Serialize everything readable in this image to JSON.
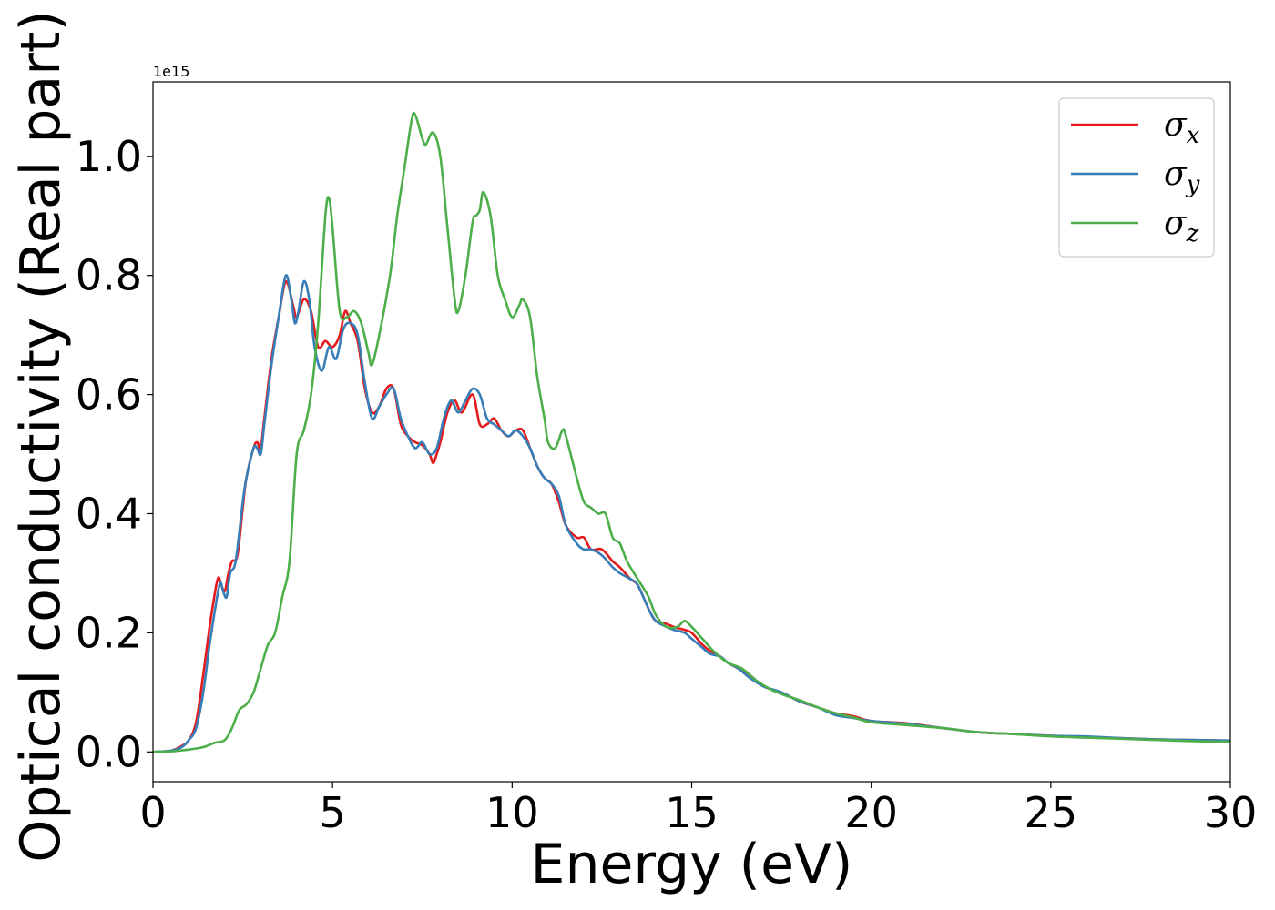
{
  "chart_data": {
    "type": "line",
    "title": "",
    "xlabel": "Energy (eV)",
    "ylabel": "Optical conductivity (Real part)",
    "y_offset_label": "1e15",
    "xlim": [
      0,
      30
    ],
    "ylim": [
      -0.05,
      1.125
    ],
    "xticks": [
      0,
      5,
      10,
      15,
      20,
      25,
      30
    ],
    "xtick_labels": [
      "0",
      "5",
      "10",
      "15",
      "20",
      "25",
      "30"
    ],
    "yticks": [
      0.0,
      0.2,
      0.4,
      0.6,
      0.8,
      1.0
    ],
    "ytick_labels": [
      "0.0",
      "0.2",
      "0.4",
      "0.6",
      "0.8",
      "1.0"
    ],
    "grid": false,
    "legend_position": "top-right",
    "series": [
      {
        "name": "σx",
        "legend_symbol": "σ",
        "legend_subscript": "x",
        "color": "#e41a1c",
        "x": [
          0,
          0.5,
          0.8,
          1.0,
          1.2,
          1.4,
          1.6,
          1.8,
          1.9,
          2.0,
          2.1,
          2.2,
          2.35,
          2.5,
          2.6,
          2.8,
          2.9,
          3.0,
          3.1,
          3.3,
          3.5,
          3.7,
          3.9,
          4.0,
          4.2,
          4.4,
          4.6,
          4.8,
          5.0,
          5.2,
          5.35,
          5.5,
          5.7,
          5.9,
          6.1,
          6.3,
          6.5,
          6.7,
          6.9,
          7.1,
          7.3,
          7.5,
          7.7,
          7.8,
          7.9,
          8.0,
          8.2,
          8.4,
          8.6,
          8.9,
          9.1,
          9.3,
          9.5,
          9.7,
          9.9,
          10.1,
          10.3,
          10.5,
          10.7,
          10.9,
          11.1,
          11.3,
          11.5,
          11.8,
          12.0,
          12.2,
          12.5,
          12.8,
          13.0,
          13.3,
          13.5,
          13.8,
          14.0,
          14.3,
          14.5,
          14.8,
          15.0,
          15.3,
          15.5,
          15.8,
          16.0,
          16.3,
          16.6,
          17.0,
          17.5,
          18.0,
          18.5,
          19.0,
          19.5,
          20.0,
          21.0,
          22.0,
          23.0,
          24.0,
          25.0,
          26.0,
          27.0,
          28.0,
          29.0,
          30.0
        ],
        "y": [
          0.0,
          0.002,
          0.01,
          0.02,
          0.05,
          0.13,
          0.22,
          0.29,
          0.28,
          0.27,
          0.3,
          0.32,
          0.33,
          0.41,
          0.46,
          0.51,
          0.52,
          0.51,
          0.56,
          0.66,
          0.73,
          0.79,
          0.75,
          0.73,
          0.76,
          0.74,
          0.68,
          0.69,
          0.68,
          0.7,
          0.74,
          0.72,
          0.69,
          0.61,
          0.57,
          0.58,
          0.61,
          0.61,
          0.55,
          0.53,
          0.52,
          0.515,
          0.5,
          0.485,
          0.5,
          0.52,
          0.57,
          0.59,
          0.57,
          0.6,
          0.55,
          0.55,
          0.56,
          0.54,
          0.53,
          0.54,
          0.54,
          0.51,
          0.48,
          0.46,
          0.45,
          0.42,
          0.38,
          0.36,
          0.36,
          0.34,
          0.34,
          0.32,
          0.31,
          0.29,
          0.28,
          0.24,
          0.22,
          0.215,
          0.21,
          0.205,
          0.2,
          0.18,
          0.17,
          0.16,
          0.15,
          0.14,
          0.13,
          0.11,
          0.1,
          0.085,
          0.075,
          0.065,
          0.06,
          0.052,
          0.048,
          0.04,
          0.033,
          0.03,
          0.027,
          0.025,
          0.023,
          0.021,
          0.02,
          0.019
        ]
      },
      {
        "name": "σy",
        "legend_symbol": "σ",
        "legend_subscript": "y",
        "color": "#377eb8",
        "x": [
          0,
          0.5,
          0.8,
          1.0,
          1.2,
          1.4,
          1.6,
          1.85,
          1.95,
          2.05,
          2.15,
          2.3,
          2.5,
          2.6,
          2.8,
          2.9,
          3.0,
          3.1,
          3.3,
          3.5,
          3.7,
          3.85,
          3.95,
          4.05,
          4.2,
          4.35,
          4.5,
          4.7,
          4.9,
          5.1,
          5.3,
          5.5,
          5.7,
          5.9,
          6.1,
          6.3,
          6.5,
          6.7,
          6.9,
          7.1,
          7.3,
          7.5,
          7.7,
          7.9,
          8.1,
          8.3,
          8.5,
          8.7,
          8.9,
          9.1,
          9.3,
          9.5,
          9.7,
          9.9,
          10.1,
          10.3,
          10.5,
          10.7,
          10.9,
          11.1,
          11.3,
          11.5,
          11.8,
          12.0,
          12.2,
          12.5,
          12.8,
          13.0,
          13.3,
          13.5,
          13.8,
          14.0,
          14.3,
          14.5,
          14.8,
          15.0,
          15.3,
          15.5,
          15.8,
          16.0,
          16.3,
          16.6,
          17.0,
          17.5,
          18.0,
          18.5,
          19.0,
          19.5,
          20.0,
          21.0,
          22.0,
          23.0,
          24.0,
          25.0,
          26.0,
          27.0,
          28.0,
          29.0,
          30.0
        ],
        "y": [
          0.0,
          0.002,
          0.008,
          0.02,
          0.04,
          0.1,
          0.19,
          0.28,
          0.27,
          0.26,
          0.3,
          0.32,
          0.42,
          0.46,
          0.51,
          0.51,
          0.5,
          0.55,
          0.65,
          0.73,
          0.8,
          0.76,
          0.72,
          0.74,
          0.79,
          0.76,
          0.68,
          0.64,
          0.68,
          0.66,
          0.71,
          0.72,
          0.7,
          0.62,
          0.56,
          0.58,
          0.6,
          0.61,
          0.56,
          0.53,
          0.51,
          0.52,
          0.5,
          0.51,
          0.56,
          0.59,
          0.57,
          0.59,
          0.61,
          0.6,
          0.56,
          0.55,
          0.54,
          0.53,
          0.54,
          0.53,
          0.51,
          0.48,
          0.46,
          0.45,
          0.43,
          0.38,
          0.35,
          0.34,
          0.34,
          0.33,
          0.31,
          0.3,
          0.29,
          0.28,
          0.24,
          0.22,
          0.21,
          0.205,
          0.2,
          0.19,
          0.175,
          0.165,
          0.16,
          0.15,
          0.14,
          0.125,
          0.11,
          0.1,
          0.085,
          0.075,
          0.062,
          0.057,
          0.052,
          0.047,
          0.04,
          0.033,
          0.03,
          0.027,
          0.026,
          0.023,
          0.021,
          0.02,
          0.019
        ]
      },
      {
        "name": "σz",
        "legend_symbol": "σ",
        "legend_subscript": "z",
        "color": "#4daf4a",
        "x": [
          0,
          0.5,
          1.0,
          1.4,
          1.7,
          2.0,
          2.2,
          2.4,
          2.6,
          2.8,
          3.0,
          3.2,
          3.4,
          3.6,
          3.8,
          4.0,
          4.2,
          4.4,
          4.6,
          4.8,
          4.9,
          5.0,
          5.2,
          5.4,
          5.6,
          5.8,
          6.0,
          6.1,
          6.3,
          6.6,
          6.8,
          7.0,
          7.2,
          7.3,
          7.5,
          7.6,
          7.8,
          8.0,
          8.2,
          8.4,
          8.5,
          8.7,
          8.9,
          9.0,
          9.1,
          9.2,
          9.4,
          9.6,
          9.8,
          10.0,
          10.2,
          10.3,
          10.5,
          10.7,
          10.9,
          11.0,
          11.2,
          11.4,
          11.5,
          11.8,
          12.0,
          12.2,
          12.4,
          12.6,
          12.8,
          13.0,
          13.2,
          13.5,
          13.8,
          14.0,
          14.3,
          14.6,
          14.8,
          15.0,
          15.3,
          15.6,
          16.0,
          16.4,
          16.8,
          17.2,
          17.6,
          18.0,
          18.5,
          19.0,
          19.5,
          20.0,
          21.0,
          22.0,
          23.0,
          24.0,
          25.0,
          26.0,
          27.0,
          28.0,
          29.0,
          30.0
        ],
        "y": [
          0.0,
          0.001,
          0.004,
          0.008,
          0.015,
          0.02,
          0.04,
          0.07,
          0.08,
          0.1,
          0.14,
          0.18,
          0.2,
          0.26,
          0.32,
          0.5,
          0.54,
          0.6,
          0.72,
          0.9,
          0.93,
          0.88,
          0.74,
          0.73,
          0.74,
          0.72,
          0.67,
          0.65,
          0.7,
          0.8,
          0.9,
          0.98,
          1.06,
          1.07,
          1.03,
          1.02,
          1.04,
          1.0,
          0.88,
          0.76,
          0.74,
          0.8,
          0.89,
          0.9,
          0.91,
          0.94,
          0.9,
          0.8,
          0.76,
          0.73,
          0.75,
          0.76,
          0.73,
          0.63,
          0.56,
          0.52,
          0.51,
          0.54,
          0.53,
          0.46,
          0.42,
          0.41,
          0.4,
          0.4,
          0.36,
          0.35,
          0.32,
          0.29,
          0.26,
          0.23,
          0.21,
          0.21,
          0.22,
          0.21,
          0.19,
          0.17,
          0.15,
          0.14,
          0.12,
          0.105,
          0.095,
          0.087,
          0.075,
          0.065,
          0.058,
          0.05,
          0.045,
          0.04,
          0.033,
          0.03,
          0.026,
          0.024,
          0.022,
          0.02,
          0.018,
          0.017
        ]
      }
    ]
  }
}
